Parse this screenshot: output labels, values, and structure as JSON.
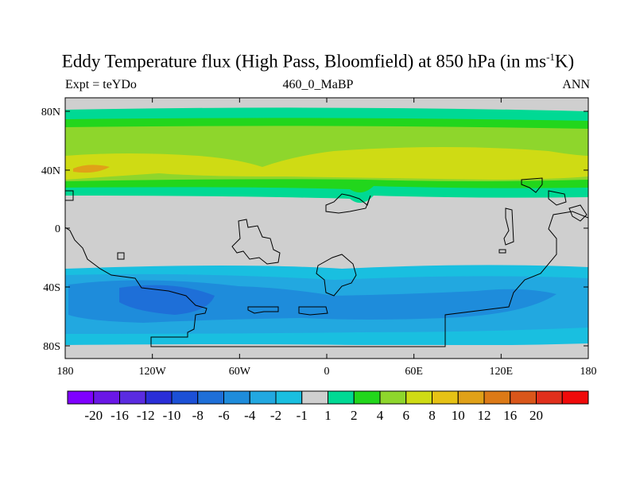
{
  "title_main": "Eddy Temperature flux (High Pass, Bloomfield) at 850 hPa (in ms",
  "title_sup": "-1",
  "title_end": "K)",
  "expt": "Expt = teYDo",
  "period": "460_0_MaBP",
  "season": "ANN",
  "y_ticks": [
    "80N",
    "40N",
    "0",
    "40S",
    "80S"
  ],
  "x_ticks": [
    "180",
    "120W",
    "60W",
    "0",
    "60E",
    "120E",
    "180"
  ],
  "colorbar": {
    "colors": [
      "#7f00ff",
      "#6a17e6",
      "#5a2be0",
      "#2a2ed8",
      "#1c50d6",
      "#1e6fd8",
      "#1e8cdb",
      "#22a8e0",
      "#19bfe0",
      "#cfcfcf",
      "#00d994",
      "#22d61c",
      "#8ed62c",
      "#cfdb14",
      "#e6c215",
      "#e0a118",
      "#dc7a17",
      "#d9561a",
      "#e02f1c",
      "#f00a0a"
    ],
    "labels": [
      "-20",
      "-16",
      "-12",
      "-10",
      "-8",
      "-6",
      "-4",
      "-2",
      "-1",
      "1",
      "2",
      "4",
      "6",
      "8",
      "10",
      "12",
      "16",
      "20"
    ]
  },
  "chart_data": {
    "type": "heatmap",
    "title": "Eddy Temperature flux (High Pass, Bloomfield) at 850 hPa (in ms-1K)",
    "x_range": [
      -180,
      180
    ],
    "y_range": [
      -90,
      90
    ],
    "bands": [
      {
        "lat_from": 80,
        "lat_to": 68,
        "value": 1.5
      },
      {
        "lat_from": 68,
        "lat_to": 60,
        "value": 3
      },
      {
        "lat_from": 60,
        "lat_to": 55,
        "value": 4
      },
      {
        "lat_from": 55,
        "lat_to": 46,
        "value": 5
      },
      {
        "lat_from": 46,
        "lat_to": 34,
        "value": 7
      },
      {
        "lat_from": 34,
        "lat_to": 28,
        "value": 5
      },
      {
        "lat_from": 28,
        "lat_to": 22,
        "value": 3
      },
      {
        "lat_from": -36,
        "lat_to": -42,
        "value": -1.5
      },
      {
        "lat_from": -42,
        "lat_to": -62,
        "value": -5
      },
      {
        "lat_from": -62,
        "lat_to": -70,
        "value": -3
      },
      {
        "lat_from": -70,
        "lat_to": -80,
        "value": -1.5
      }
    ],
    "maxima": [
      {
        "lon": -168,
        "lat": 40,
        "value": 9
      },
      {
        "lon": -105,
        "lat": -55,
        "value": -7
      }
    ]
  }
}
